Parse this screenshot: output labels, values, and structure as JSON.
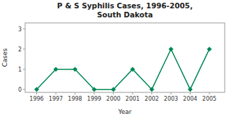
{
  "chart_data": {
    "type": "line",
    "title": "P & S Syphilis Cases, 1996-2005,\nSouth Dakota",
    "x_label": "Year",
    "y_label": "Cases",
    "x": [
      1996,
      1997,
      1998,
      1999,
      2000,
      2001,
      2002,
      2003,
      2004,
      2005
    ],
    "values": [
      0,
      1,
      1,
      0,
      0,
      1,
      0,
      2,
      0,
      2
    ],
    "color": "#008855",
    "marker": "diamond",
    "xlim": [
      1995.4,
      2005.8
    ],
    "ylim": [
      -0.15,
      3.3
    ],
    "xticks": [
      1996,
      1997,
      1998,
      1999,
      2000,
      2001,
      2002,
      2003,
      2004,
      2005
    ],
    "yticks": [
      0,
      1,
      2,
      3
    ],
    "grid": false
  }
}
